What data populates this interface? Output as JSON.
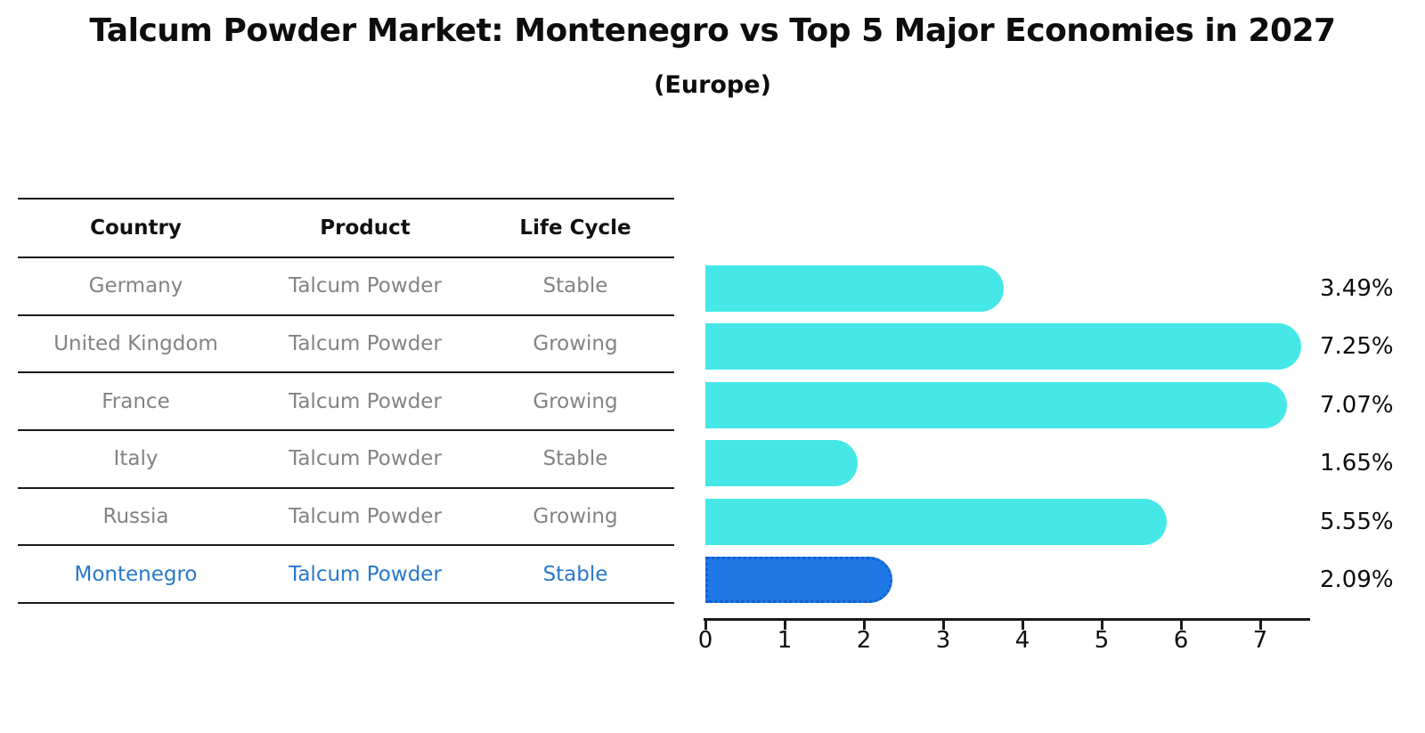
{
  "header": {
    "title": "Talcum Powder Market: Montenegro vs Top 5 Major Economies in 2027",
    "subtitle": "(Europe)"
  },
  "table": {
    "columns": [
      "Country",
      "Product",
      "Life Cycle"
    ],
    "rows": [
      {
        "country": "Germany",
        "product": "Talcum Powder",
        "life_cycle": "Stable",
        "highlight": false
      },
      {
        "country": "United Kingdom",
        "product": "Talcum Powder",
        "life_cycle": "Growing",
        "highlight": false
      },
      {
        "country": "France",
        "product": "Talcum Powder",
        "life_cycle": "Growing",
        "highlight": false
      },
      {
        "country": "Italy",
        "product": "Talcum Powder",
        "life_cycle": "Stable",
        "highlight": false
      },
      {
        "country": "Russia",
        "product": "Talcum Powder",
        "life_cycle": "Growing",
        "highlight": true
      }
    ]
  },
  "chart_data": {
    "type": "bar",
    "orientation": "horizontal",
    "title": "Talcum Powder Market: Montenegro vs Top 5 Major Economies in 2027",
    "subtitle": "(Europe)",
    "categories": [
      "Germany",
      "United Kingdom",
      "France",
      "Italy",
      "Russia",
      "Montenegro"
    ],
    "values": [
      3.49,
      7.25,
      7.07,
      1.65,
      5.55,
      2.09
    ],
    "value_labels": [
      "3.49%",
      "7.25%",
      "7.07%",
      "1.65%",
      "5.55%",
      "2.09%"
    ],
    "x_ticks": [
      "0",
      "1",
      "2",
      "3",
      "4",
      "5",
      "6",
      "7"
    ],
    "xlim": [
      0,
      7.64
    ],
    "grid": false,
    "legend": "none",
    "bar_color": "#45e8e6",
    "highlight_color": "#1f78e5",
    "highlight_border_color": "#135fd0",
    "highlight_index": 5,
    "highlight_text_color": "#2878cb",
    "row_text_color": "#838383"
  }
}
